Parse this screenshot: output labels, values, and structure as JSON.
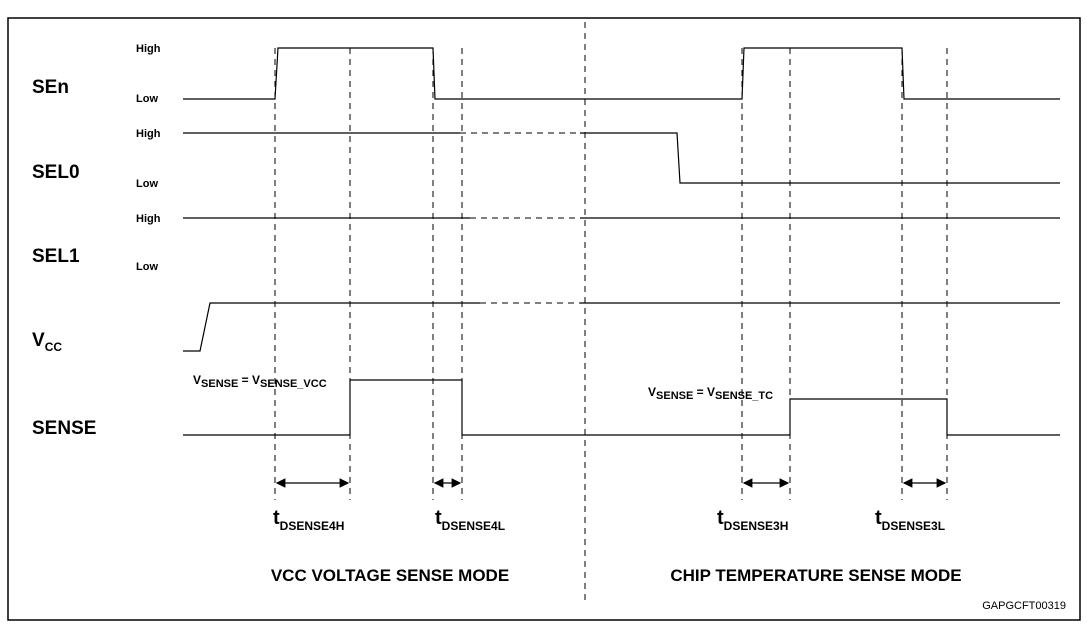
{
  "signals": [
    {
      "name": "SEn",
      "high": "High",
      "low": "Low"
    },
    {
      "name": "SEL0",
      "high": "High",
      "low": "Low"
    },
    {
      "name": "SEL1",
      "high": "High",
      "low": "Low"
    },
    {
      "name": {
        "main": "V",
        "sub": "CC"
      }
    },
    {
      "name": "SENSE"
    }
  ],
  "annotations": [
    {
      "v1": "V",
      "s1": "SENSE",
      "eq": " = ",
      "v2": "V",
      "s2": "SENSE_VCC"
    },
    {
      "v1": "V",
      "s1": "SENSE",
      "eq": " = ",
      "v2": "V",
      "s2": "SENSE_TC"
    }
  ],
  "timings": [
    {
      "main": "t",
      "sub": "DSENSE4H"
    },
    {
      "main": "t",
      "sub": "DSENSE4L"
    },
    {
      "main": "t",
      "sub": "DSENSE3H"
    },
    {
      "main": "t",
      "sub": "DSENSE3L"
    }
  ],
  "modes": [
    "VCC VOLTAGE SENSE MODE",
    "CHIP TEMPERATURE SENSE MODE"
  ],
  "figure_id": "GAPGCFT00319"
}
